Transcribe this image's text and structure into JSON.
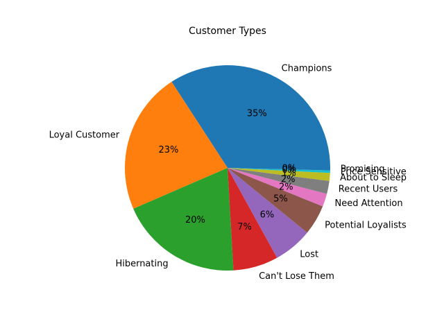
{
  "chart_data": {
    "type": "pie",
    "title": "Customer Types",
    "slices": [
      {
        "label": "Champions",
        "value": 35.2,
        "pct_label": "35%",
        "color": "#1f77b4"
      },
      {
        "label": "Loyal Customer",
        "value": 23.0,
        "pct_label": "23%",
        "color": "#ff7f0e"
      },
      {
        "label": "Hibernating",
        "value": 20.0,
        "pct_label": "20%",
        "color": "#2ca02c"
      },
      {
        "label": "Can't Lose Them",
        "value": 7.3,
        "pct_label": "7%",
        "color": "#d62728"
      },
      {
        "label": "Lost",
        "value": 6.3,
        "pct_label": "6%",
        "color": "#9467bd"
      },
      {
        "label": "Potential Loyalists",
        "value": 4.9,
        "pct_label": "5%",
        "color": "#8c564b"
      },
      {
        "label": "Need Attention",
        "value": 2.1,
        "pct_label": "2%",
        "color": "#e377c2"
      },
      {
        "label": "Recent Users",
        "value": 2.1,
        "pct_label": "2%",
        "color": "#7f7f7f"
      },
      {
        "label": "About to Sleep",
        "value": 1.3,
        "pct_label": "1%",
        "color": "#bcbd22"
      },
      {
        "label": "Price Sensitive",
        "value": 0.4,
        "pct_label": "0%",
        "color": "#17becf"
      },
      {
        "label": "Promising",
        "value": 0.4,
        "pct_label": "0%",
        "color": "#1f77b4"
      }
    ],
    "start_angle_deg": 0,
    "direction": "counterclockwise"
  }
}
